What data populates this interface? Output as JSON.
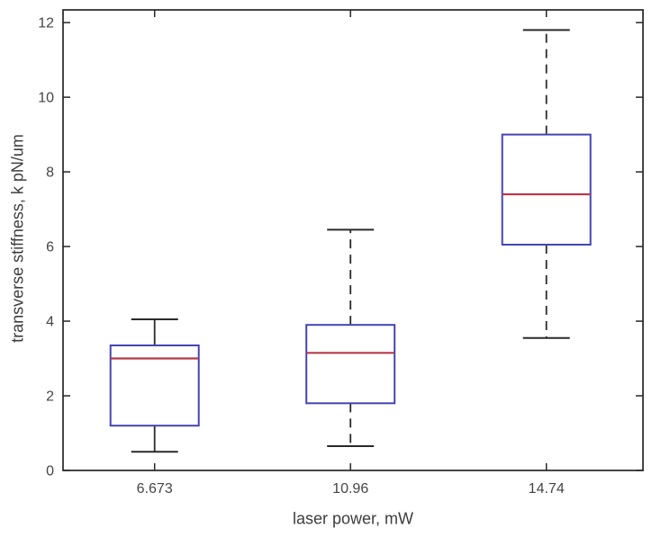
{
  "chart_data": {
    "type": "boxplot",
    "title": "",
    "xlabel": "laser power, mW",
    "ylabel": "transverse stiffness, k pN/um",
    "categories": [
      "6.673",
      "10.96",
      "14.74"
    ],
    "boxes": [
      {
        "category": "6.673",
        "whisker_low": 0.5,
        "q1": 1.2,
        "median": 3.0,
        "q3": 3.35,
        "whisker_high": 4.05,
        "whisker_style": "solid"
      },
      {
        "category": "10.96",
        "whisker_low": 0.65,
        "q1": 1.8,
        "median": 3.15,
        "q3": 3.9,
        "whisker_high": 6.45,
        "whisker_style": "dashed"
      },
      {
        "category": "14.74",
        "whisker_low": 3.55,
        "q1": 6.05,
        "median": 7.4,
        "q3": 9.0,
        "whisker_high": 11.8,
        "whisker_style": "dashed"
      }
    ],
    "outliers": [],
    "ylim": [
      0,
      12.34
    ],
    "yticks": [
      0,
      2,
      4,
      6,
      8,
      10,
      12
    ],
    "grid": false,
    "legend": null,
    "colors": {
      "box": "#4444b4",
      "median": "#b5394a",
      "whisker": "#2a2a2a",
      "cap": "#2a2a2a",
      "frame": "#262626",
      "tick_label": "#454545",
      "axis_label": "#3d3d3d",
      "background": "#ffffff"
    }
  }
}
